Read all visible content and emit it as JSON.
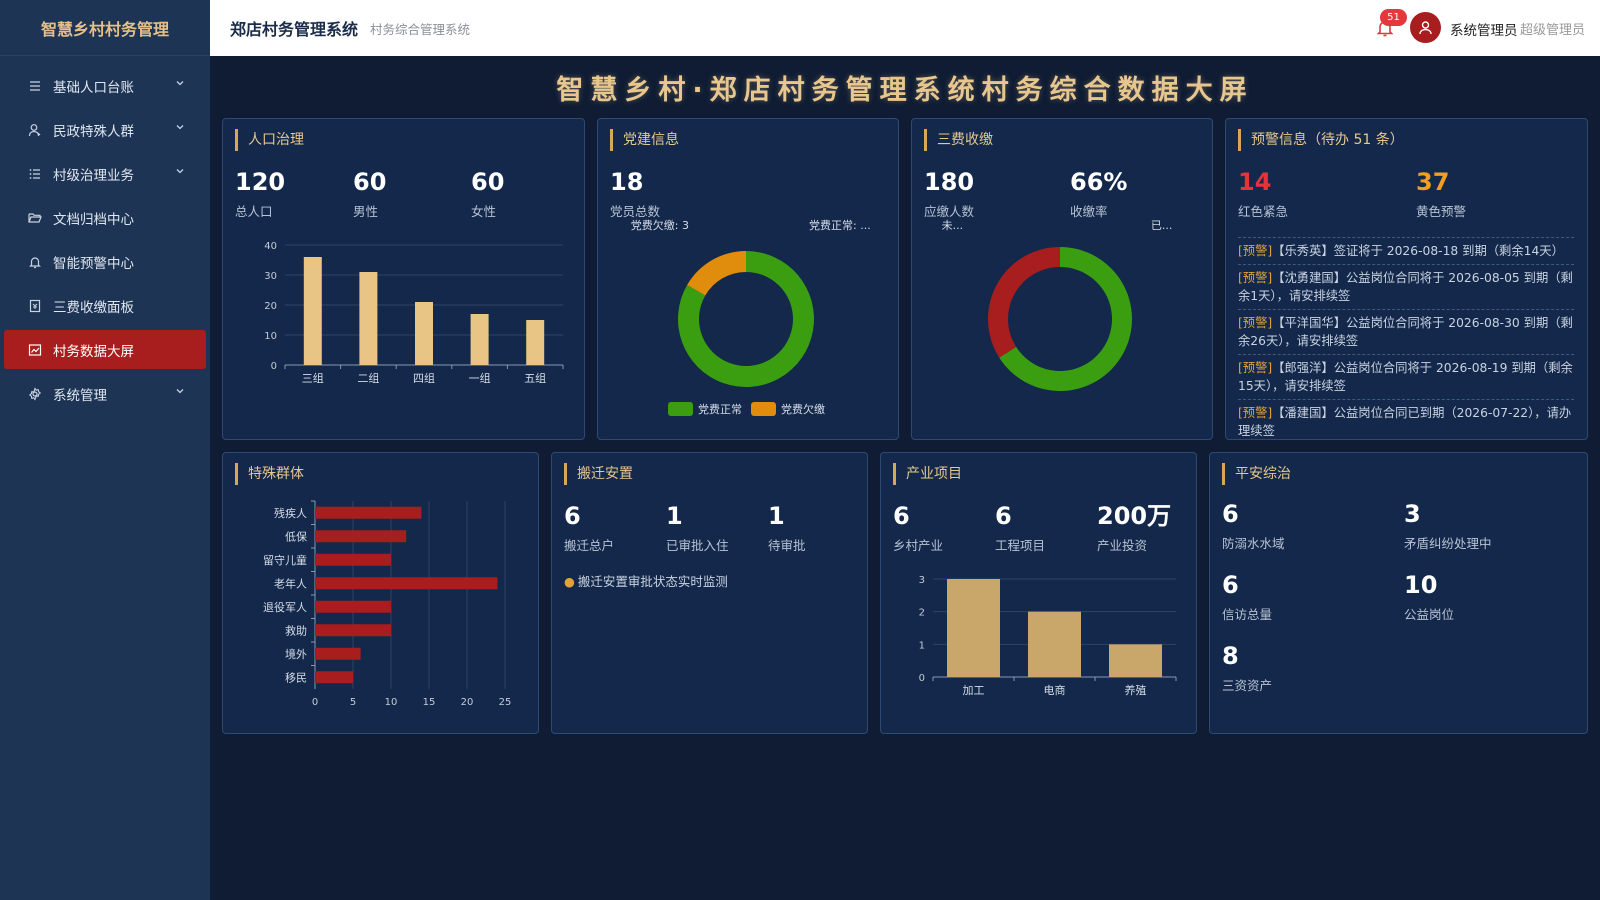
{
  "sidebar": {
    "logo": "智慧乡村村务管理",
    "items": [
      {
        "label": "基础人口台账",
        "icon": "menu-lines-icon",
        "chevron": true
      },
      {
        "label": "民政特殊人群",
        "icon": "user-icon",
        "chevron": true
      },
      {
        "label": "村级治理业务",
        "icon": "list-icon",
        "chevron": true
      },
      {
        "label": "文档归档中心",
        "icon": "folder-open-icon",
        "chevron": false
      },
      {
        "label": "智能预警中心",
        "icon": "bell-icon",
        "chevron": false
      },
      {
        "label": "三费收缴面板",
        "icon": "receipt-icon",
        "chevron": false
      },
      {
        "label": "村务数据大屏",
        "icon": "chart-icon",
        "chevron": false,
        "active": true
      },
      {
        "label": "系统管理",
        "icon": "gear-icon",
        "chevron": true
      }
    ]
  },
  "header": {
    "title": "郑店村务管理系统",
    "subtitle": "村务综合管理系统",
    "notification_count": "51",
    "user_name": "系统管理员",
    "user_role": "超级管理员"
  },
  "screen_title": "智慧乡村·郑店村务管理系统村务综合数据大屏",
  "colors": {
    "gold": "#e8c78e",
    "bar_gold": "#e8c485",
    "green": "#3a9e10",
    "orange": "#e08c0c",
    "red": "#a81e1e",
    "urgent_red": "#e8323a",
    "yellow": "#f0a020"
  },
  "panels": {
    "population": {
      "title": "人口治理",
      "stats": [
        {
          "value": "120",
          "label": "总人口"
        },
        {
          "value": "60",
          "label": "男性"
        },
        {
          "value": "60",
          "label": "女性"
        }
      ]
    },
    "party": {
      "title": "党建信息",
      "stats": [
        {
          "value": "18",
          "label": "党员总数"
        }
      ]
    },
    "fees": {
      "title": "三费收缴",
      "stats": [
        {
          "value": "180",
          "label": "应缴人数"
        },
        {
          "value": "66%",
          "label": "收缴率"
        }
      ]
    },
    "warnings": {
      "title": "预警信息（待办 51 条）",
      "stats": [
        {
          "value": "14",
          "label": "红色紧急"
        },
        {
          "value": "37",
          "label": "黄色预警"
        }
      ],
      "items": [
        {
          "tag": "[预警]",
          "text": "【乐秀英】签证将于 2026-08-18 到期（剩余14天）"
        },
        {
          "tag": "[预警]",
          "text": "【沈勇建国】公益岗位合同将于 2026-08-05 到期（剩余1天），请安排续签"
        },
        {
          "tag": "[预警]",
          "text": "【平洋国华】公益岗位合同将于 2026-08-30 到期（剩余26天），请安排续签"
        },
        {
          "tag": "[预警]",
          "text": "【郎强洋】公益岗位合同将于 2026-08-19 到期（剩余15天），请安排续签"
        },
        {
          "tag": "[预警]",
          "text": "【潘建国】公益岗位合同已到期（2026-07-22），请办理续签"
        }
      ]
    },
    "special": {
      "title": "特殊群体"
    },
    "relocation": {
      "title": "搬迁安置",
      "stats": [
        {
          "value": "6",
          "label": "搬迁总户"
        },
        {
          "value": "1",
          "label": "已审批入住"
        },
        {
          "value": "1",
          "label": "待审批"
        }
      ],
      "note": "搬迁安置审批状态实时监测"
    },
    "industry": {
      "title": "产业项目",
      "stats": [
        {
          "value": "6",
          "label": "乡村产业"
        },
        {
          "value": "6",
          "label": "工程项目"
        },
        {
          "value": "200万",
          "label": "产业投资"
        }
      ]
    },
    "safety": {
      "title": "平安综治",
      "stats": [
        {
          "value": "6",
          "label": "防溺水水域"
        },
        {
          "value": "3",
          "label": "矛盾纠纷处理中"
        },
        {
          "value": "6",
          "label": "信访总量"
        },
        {
          "value": "10",
          "label": "公益岗位"
        },
        {
          "value": "8",
          "label": "三资资产"
        }
      ]
    }
  },
  "chart_data": [
    {
      "id": "population-groups",
      "type": "bar",
      "categories": [
        "三组",
        "二组",
        "四组",
        "一组",
        "五组"
      ],
      "values": [
        36,
        31,
        21,
        17,
        15
      ],
      "ylim": [
        0,
        40
      ],
      "yticks": [
        0,
        10,
        20,
        30,
        40
      ],
      "grid": true
    },
    {
      "id": "party-fees",
      "type": "pie",
      "donut": true,
      "slices": [
        {
          "name": "党费正常",
          "value": 15,
          "color": "#3a9e10",
          "label": "党费正常: ..."
        },
        {
          "name": "党费欠缴",
          "value": 3,
          "color": "#e08c0c",
          "label": "党费欠缴: 3"
        }
      ],
      "legend": "bottom"
    },
    {
      "id": "fee-collection",
      "type": "pie",
      "donut": true,
      "slices": [
        {
          "name": "已缴",
          "value": 66,
          "color": "#3a9e10",
          "label": "已..."
        },
        {
          "name": "未缴",
          "value": 34,
          "color": "#a81e1e",
          "label": "未..."
        }
      ]
    },
    {
      "id": "special-groups",
      "type": "bar",
      "orientation": "horizontal",
      "categories": [
        "残疾人",
        "低保",
        "留守儿童",
        "老年人",
        "退役军人",
        "救助",
        "境外",
        "移民"
      ],
      "values": [
        14,
        12,
        10,
        24,
        10,
        10,
        6,
        5
      ],
      "xlim": [
        0,
        25
      ],
      "xticks": [
        0,
        5,
        10,
        15,
        20,
        25
      ],
      "grid": true
    },
    {
      "id": "industry-projects",
      "type": "bar",
      "categories": [
        "加工",
        "电商",
        "养殖"
      ],
      "values": [
        3,
        2,
        1
      ],
      "ylim": [
        0,
        3
      ],
      "yticks": [
        0,
        1,
        2,
        3
      ],
      "grid": true
    }
  ]
}
